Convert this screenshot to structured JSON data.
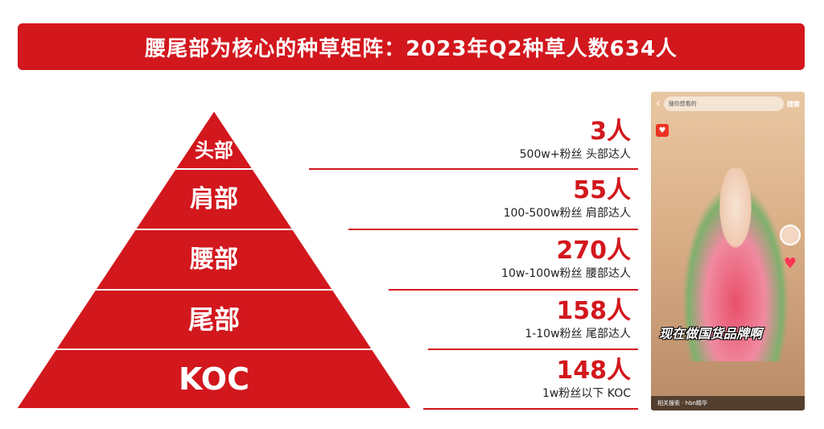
{
  "title": "腰尾部为核心的种草矩阵：2023年Q2种草人数634人",
  "colors": {
    "accent": "#d2171d",
    "divider": "#ffffff"
  },
  "tiers": [
    {
      "label": "头部",
      "count": "3人",
      "desc": "500w+粉丝 头部达人"
    },
    {
      "label": "肩部",
      "count": "55人",
      "desc": "100-500w粉丝 肩部达人"
    },
    {
      "label": "腰部",
      "count": "270人",
      "desc": "10w-100w粉丝 腰部达人"
    },
    {
      "label": "尾部",
      "count": "158人",
      "desc": "1-10w粉丝 尾部达人"
    },
    {
      "label": "KOC",
      "count": "148人",
      "desc": "1w粉丝以下 KOC"
    }
  ],
  "phone": {
    "search_placeholder": "搜你想看的",
    "search_button": "搜索",
    "caption": "现在做国货品牌啊",
    "bottom_text": "相关搜索 · hbn精华",
    "icons": [
      "back-arrow-icon",
      "heart-icon",
      "sound-icon"
    ]
  }
}
